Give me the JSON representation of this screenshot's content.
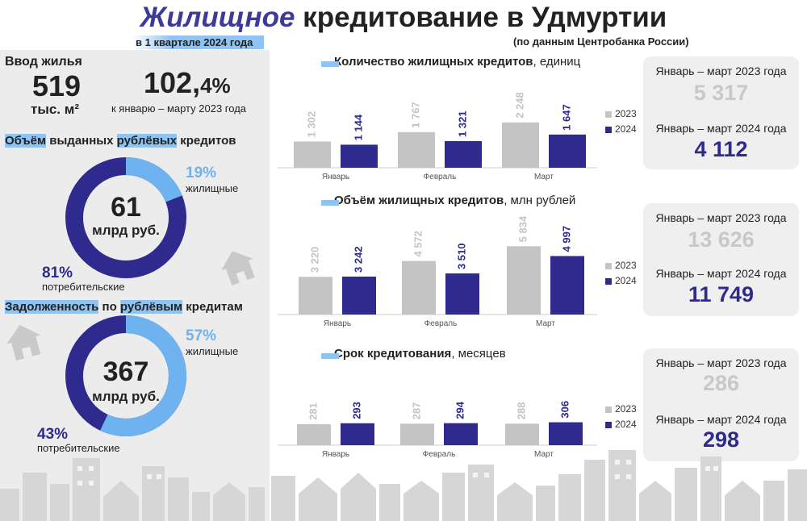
{
  "header": {
    "title_accent": "Жилищное",
    "title_rest": " кредитование в Удмуртии",
    "period": "в 1 квартале 2024 года",
    "source": "(по данным Центробанка России)"
  },
  "housing": {
    "heading": "Ввод жилья",
    "value": "519",
    "unit": "тыс. м²",
    "growth_int": "102,",
    "growth_frac": "4%",
    "growth_note": "к январю – марту 2023 года"
  },
  "ruble_loans": {
    "heading_hl1": "Объём",
    "heading_mid": " выданных ",
    "heading_hl2": "рублёвых",
    "heading_end": " кредитов",
    "total": "61",
    "total_unit": "млрд руб.",
    "housing_pct": "19%",
    "housing_fraction": 0.19,
    "housing_label": "жилищные",
    "consumer_pct": "81%",
    "consumer_label": "потребительские"
  },
  "debt": {
    "heading_hl1": "Задолженность",
    "heading_mid": " по ",
    "heading_hl2": "рублёвым",
    "heading_end": " кредитам",
    "total": "367",
    "total_unit": "млрд руб.",
    "housing_pct": "57%",
    "housing_fraction": 0.57,
    "housing_label": "жилищные",
    "consumer_pct": "43%",
    "consumer_label": "потребительские"
  },
  "colors": {
    "y2023": "#c4c4c4",
    "y2024": "#2e2a8e",
    "accent_light": "#6fb2f0",
    "highlight": "#8ec3f2"
  },
  "legend": {
    "y2023": "2023",
    "y2024": "2024"
  },
  "chart_data": [
    {
      "type": "bar",
      "title": "Количество жилищных кредитов",
      "unit_suffix": ", единиц",
      "categories": [
        "Январь",
        "Февраль",
        "Март"
      ],
      "series": [
        {
          "name": "2023",
          "values": [
            1302,
            1767,
            2248
          ],
          "labels": [
            "1 302",
            "1 767",
            "2 248"
          ]
        },
        {
          "name": "2024",
          "values": [
            1144,
            1321,
            1647
          ],
          "labels": [
            "1 144",
            "1 321",
            "1 647"
          ]
        }
      ],
      "ylim": [
        0,
        2400
      ]
    },
    {
      "type": "bar",
      "title": "Объём жилищных кредитов",
      "unit_suffix": ", млн рублей",
      "categories": [
        "Январь",
        "Февраль",
        "Март"
      ],
      "series": [
        {
          "name": "2023",
          "values": [
            3220,
            4572,
            5834
          ],
          "labels": [
            "3 220",
            "4 572",
            "5 834"
          ]
        },
        {
          "name": "2024",
          "values": [
            3242,
            3510,
            4997
          ],
          "labels": [
            "3 242",
            "3 510",
            "4 997"
          ]
        }
      ],
      "ylim": [
        0,
        6200
      ]
    },
    {
      "type": "bar",
      "title": "Срок кредитования",
      "unit_suffix": ", месяцев",
      "categories": [
        "Январь",
        "Февраль",
        "Март"
      ],
      "series": [
        {
          "name": "2023",
          "values": [
            281,
            287,
            288
          ],
          "labels": [
            "281",
            "287",
            "288"
          ]
        },
        {
          "name": "2024",
          "values": [
            293,
            294,
            306
          ],
          "labels": [
            "293",
            "294",
            "306"
          ]
        }
      ],
      "ylim": [
        0,
        700
      ]
    }
  ],
  "cards": [
    {
      "label_a": "Январь – март 2023 года",
      "value_a": "5 317",
      "label_b": "Январь – март 2024 года",
      "value_b": "4 112"
    },
    {
      "label_a": "Январь – март 2023 года",
      "value_a": "13 626",
      "label_b": "Январь – март 2024 года",
      "value_b": "11 749"
    },
    {
      "label_a": "Январь – март 2023 года",
      "value_a": "286",
      "label_b": "Январь – март 2024 года",
      "value_b": "298"
    }
  ]
}
